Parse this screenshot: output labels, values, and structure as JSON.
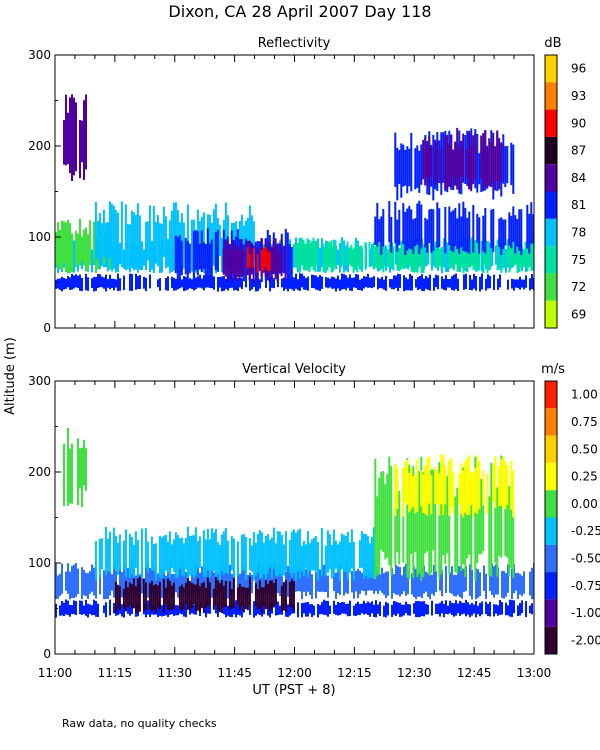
{
  "title": "Dixon, CA 28 April 2007  Day 118",
  "ylabel": "Altitude (m)",
  "xlabel": "UT  (PST + 8)",
  "footnote": "Raw data, no quality checks",
  "x_ticks": [
    "11:00",
    "11:15",
    "11:30",
    "11:45",
    "12:00",
    "12:15",
    "12:30",
    "12:45",
    "13:00"
  ],
  "chart_data": [
    {
      "type": "heatmap",
      "title": "Reflectivity",
      "x_range_minutes": [
        0,
        120
      ],
      "ylim": [
        0,
        300
      ],
      "y_ticks": [
        "0",
        "100",
        "200",
        "300"
      ],
      "colorbar": {
        "unit": "dB",
        "labels": [
          "96",
          "93",
          "90",
          "87",
          "84",
          "81",
          "78",
          "75",
          "72",
          "69"
        ],
        "colors": [
          "#ffd000",
          "#ff8000",
          "#ff0000",
          "#200020",
          "#5000a0",
          "#0020ff",
          "#00c0ff",
          "#00e0a0",
          "#40e040",
          "#c0ff00"
        ]
      },
      "layers": [
        {
          "x0": 0,
          "x1": 120,
          "y0": 40,
          "y1": 60,
          "color": "#0020ff"
        },
        {
          "x0": 0,
          "x1": 120,
          "y0": 60,
          "y1": 100,
          "color": "#00c0ff"
        },
        {
          "x0": 0,
          "x1": 14,
          "y0": 60,
          "y1": 120,
          "color": "#40e040"
        },
        {
          "x0": 10,
          "x1": 50,
          "y0": 60,
          "y1": 140,
          "color": "#00c0ff"
        },
        {
          "x0": 30,
          "x1": 60,
          "y0": 50,
          "y1": 110,
          "color": "#0020ff"
        },
        {
          "x0": 42,
          "x1": 58,
          "y0": 50,
          "y1": 100,
          "color": "#5000a0"
        },
        {
          "x0": 48,
          "x1": 54,
          "y0": 60,
          "y1": 90,
          "color": "#ff0000"
        },
        {
          "x0": 60,
          "x1": 120,
          "y0": 60,
          "y1": 100,
          "color": "#00e0a0"
        },
        {
          "x0": 80,
          "x1": 120,
          "y0": 80,
          "y1": 140,
          "color": "#0020ff"
        },
        {
          "x0": 85,
          "x1": 115,
          "y0": 140,
          "y1": 220,
          "color": "#0020ff"
        },
        {
          "x0": 92,
          "x1": 112,
          "y0": 150,
          "y1": 220,
          "color": "#5000a0"
        },
        {
          "x0": 2,
          "x1": 8,
          "y0": 160,
          "y1": 260,
          "color": "#5000a0"
        }
      ]
    },
    {
      "type": "heatmap",
      "title": "Vertical Velocity",
      "x_range_minutes": [
        0,
        120
      ],
      "ylim": [
        0,
        300
      ],
      "y_ticks": [
        "0",
        "100",
        "200",
        "300"
      ],
      "colorbar": {
        "unit": "m/s",
        "labels": [
          "1.00",
          "0.75",
          "0.50",
          "0.25",
          "0.00",
          "-0.25",
          "-0.50",
          "-0.75",
          "-1.00",
          "-2.00"
        ],
        "colors": [
          "#ff2000",
          "#ff8000",
          "#ffd000",
          "#ffff00",
          "#40e040",
          "#00c0ff",
          "#3070ff",
          "#0020ff",
          "#5000a0",
          "#300030"
        ]
      },
      "layers": [
        {
          "x0": 0,
          "x1": 120,
          "y0": 40,
          "y1": 60,
          "color": "#0020ff"
        },
        {
          "x0": 0,
          "x1": 120,
          "y0": 60,
          "y1": 100,
          "color": "#3070ff"
        },
        {
          "x0": 15,
          "x1": 60,
          "y0": 45,
          "y1": 85,
          "color": "#300030"
        },
        {
          "x0": 10,
          "x1": 80,
          "y0": 80,
          "y1": 140,
          "color": "#00c0ff"
        },
        {
          "x0": 80,
          "x1": 115,
          "y0": 80,
          "y1": 220,
          "color": "#40e040"
        },
        {
          "x0": 85,
          "x1": 115,
          "y0": 150,
          "y1": 220,
          "color": "#ffff00"
        },
        {
          "x0": 2,
          "x1": 8,
          "y0": 160,
          "y1": 260,
          "color": "#40e040"
        }
      ]
    }
  ]
}
